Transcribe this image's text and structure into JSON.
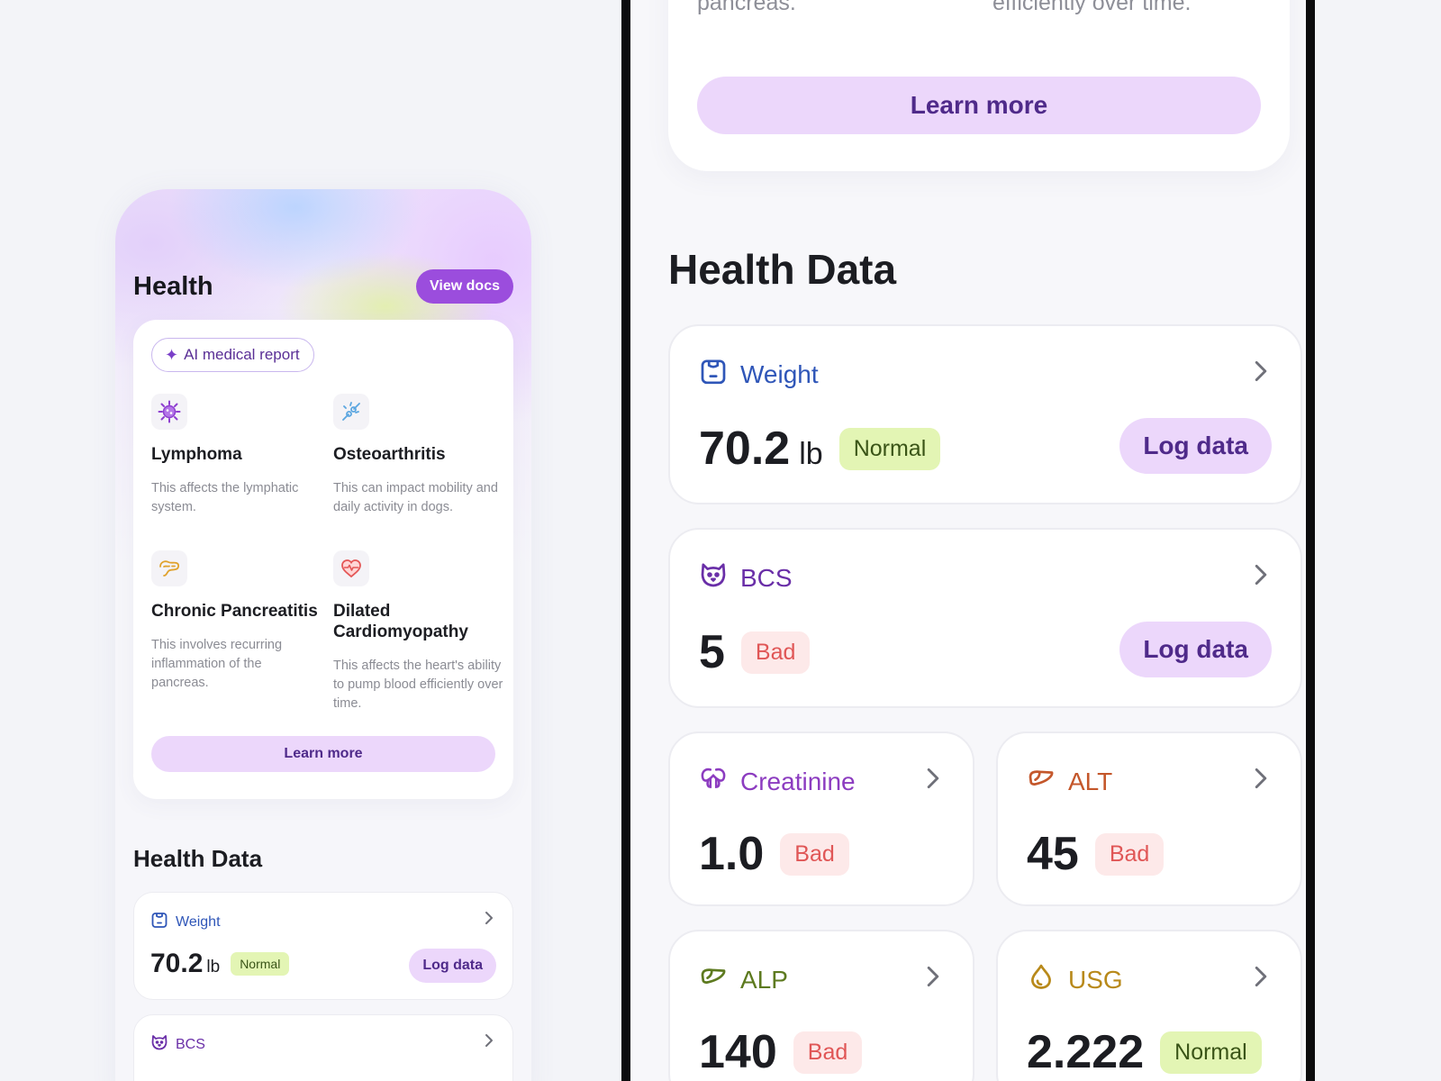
{
  "left": {
    "header": {
      "title": "Health",
      "view_docs": "View docs"
    },
    "report": {
      "badge": "AI medical report",
      "conditions": [
        {
          "name": "Lymphoma",
          "desc": "This affects the lymphatic system.",
          "icon": "virus-icon"
        },
        {
          "name": "Osteoarthritis",
          "desc": "This can impact mobility and daily activity in dogs.",
          "icon": "bone-joint-icon"
        },
        {
          "name": "Chronic Pancreatitis",
          "desc": "This involves recurring inflammation of the pancreas.",
          "icon": "pancreas-icon"
        },
        {
          "name": "Dilated Cardiomyopathy",
          "desc": "This affects the heart's ability to pump blood efficiently over time.",
          "icon": "heart-pulse-icon"
        }
      ],
      "learn_more": "Learn more"
    },
    "health_data": {
      "title": "Health Data",
      "weight": {
        "label": "Weight",
        "value": "70.2",
        "unit": "lb",
        "status": "Normal",
        "log": "Log data"
      },
      "bcs": {
        "label": "BCS"
      }
    }
  },
  "right": {
    "top_card": {
      "text_left": "pancreas.",
      "text_right": "efficiently over time.",
      "learn_more": "Learn more"
    },
    "health_data": {
      "title": "Health Data",
      "weight": {
        "label": "Weight",
        "value": "70.2",
        "unit": "lb",
        "status": "Normal",
        "log": "Log data"
      },
      "bcs": {
        "label": "BCS",
        "value": "5",
        "status": "Bad",
        "log": "Log data"
      },
      "creatinine": {
        "label": "Creatinine",
        "value": "1.0",
        "status": "Bad"
      },
      "alt": {
        "label": "ALT",
        "value": "45",
        "status": "Bad"
      },
      "alp": {
        "label": "ALP",
        "value": "140",
        "status": "Bad"
      },
      "usg": {
        "label": "USG",
        "value": "2.222",
        "status": "Normal"
      }
    }
  },
  "colors": {
    "accent": "#9b4ddd",
    "accent_soft": "#ecd7fb",
    "normal_bg": "#e3f5b4",
    "bad_bg": "#fde9e9",
    "bad_text": "#e05656",
    "weight_color": "#2f56b8",
    "bcs_color": "#6a2fa8",
    "creatinine_color": "#8c3cc0",
    "alt_color": "#c4572b",
    "alp_color": "#5d7a1f",
    "usg_color": "#b8891a"
  }
}
